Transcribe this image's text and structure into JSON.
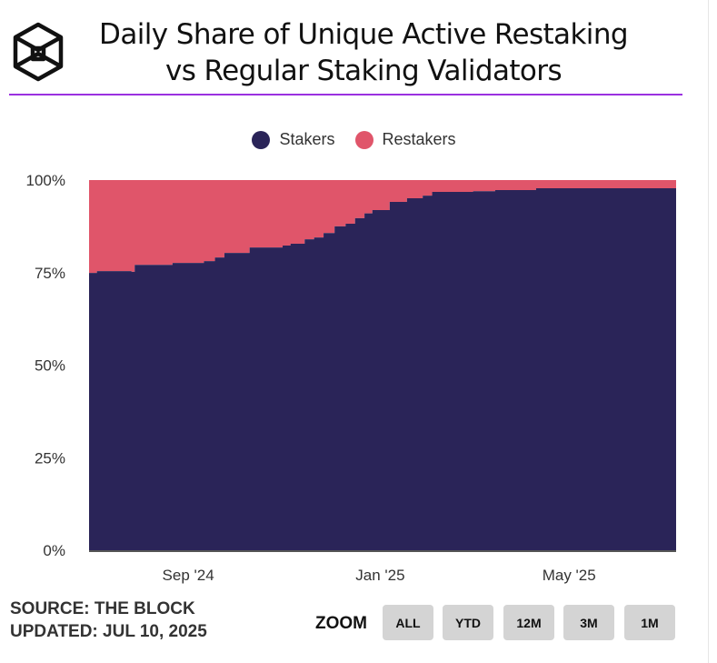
{
  "header": {
    "title_line1": "Daily Share of Unique Active Restaking",
    "title_line2": "vs Regular Staking Validators",
    "logo": "the-block-cube-logo",
    "accent_color": "#9b30e0"
  },
  "footer": {
    "source": "SOURCE: THE BLOCK",
    "updated": "UPDATED: JUL 10, 2025",
    "zoom_label": "ZOOM",
    "zoom_buttons": [
      "ALL",
      "YTD",
      "12M",
      "3M",
      "1M"
    ]
  },
  "chart_data": {
    "type": "area",
    "stacking": "percent",
    "title": "Daily Share of Unique Active Restaking vs Regular Staking Validators",
    "legend_position": "top",
    "grid": false,
    "ylim": [
      0,
      100
    ],
    "y_ticks": [
      "0%",
      "25%",
      "50%",
      "75%",
      "100%"
    ],
    "x_ticks": [
      {
        "date": "2024-09-01",
        "label": "Sep '24"
      },
      {
        "date": "2025-01-01",
        "label": "Jan '25"
      },
      {
        "date": "2025-05-01",
        "label": "May '25"
      }
    ],
    "x_range": [
      "2024-06-30",
      "2025-07-08"
    ],
    "x": [
      "2024-06-30",
      "2024-07-05",
      "2024-07-27",
      "2024-07-29",
      "2024-08-22",
      "2024-09-11",
      "2024-09-18",
      "2024-09-24",
      "2024-10-10",
      "2024-10-31",
      "2024-11-05",
      "2024-11-14",
      "2024-11-20",
      "2024-11-26",
      "2024-12-03",
      "2024-12-10",
      "2024-12-16",
      "2024-12-22",
      "2024-12-27",
      "2025-01-05",
      "2025-01-07",
      "2025-01-18",
      "2025-01-28",
      "2025-02-03",
      "2025-03-01",
      "2025-03-15",
      "2025-04-10",
      "2025-07-08"
    ],
    "series": [
      {
        "name": "Stakers",
        "color": "#2a2458",
        "values": [
          74.9,
          75.4,
          75.2,
          77.1,
          77.6,
          78.1,
          79.1,
          80.3,
          81.8,
          82.3,
          82.8,
          84.0,
          84.5,
          85.7,
          87.5,
          88.2,
          89.7,
          91.0,
          91.9,
          91.9,
          94.1,
          95.1,
          95.8,
          96.8,
          97.0,
          97.3,
          97.8,
          97.6
        ]
      },
      {
        "name": "Restakers",
        "color": "#e0556a",
        "values": [
          25.1,
          24.6,
          24.8,
          22.9,
          22.4,
          21.9,
          20.9,
          19.7,
          18.2,
          17.7,
          17.2,
          16.0,
          15.5,
          14.3,
          12.5,
          11.8,
          10.3,
          9.0,
          8.1,
          8.1,
          5.9,
          4.9,
          4.2,
          3.2,
          3.0,
          2.7,
          2.2,
          2.4
        ]
      }
    ]
  }
}
